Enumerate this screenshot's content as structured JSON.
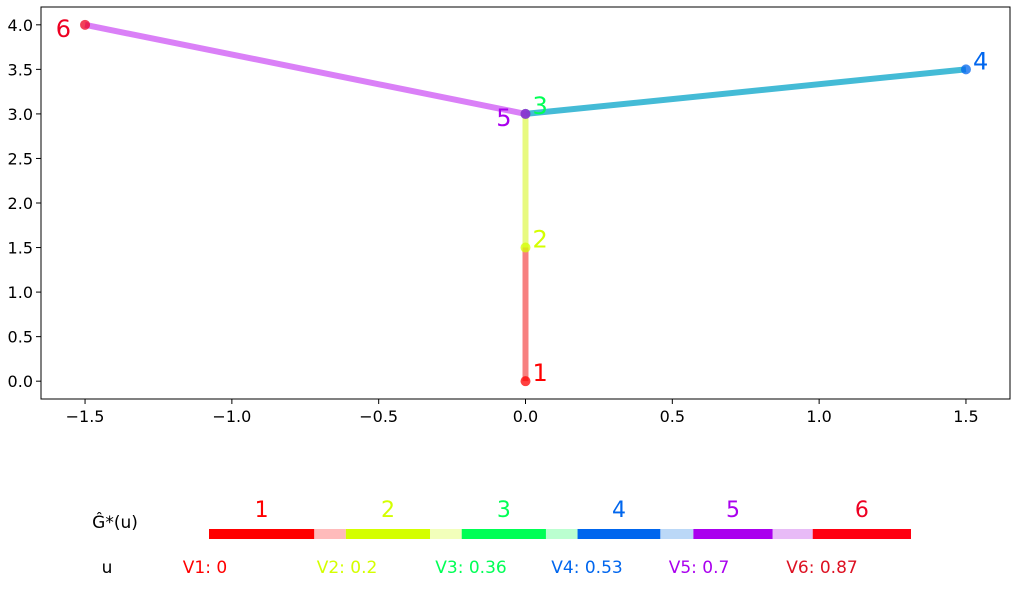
{
  "chart_data": [
    {
      "type": "tree",
      "title": "",
      "xlabel": "",
      "ylabel": "",
      "xlim": [
        -1.65,
        1.65
      ],
      "ylim": [
        -0.2,
        4.2
      ],
      "grid": false,
      "xticks": [
        -1.5,
        -1.0,
        -0.5,
        0.0,
        0.5,
        1.0,
        1.5
      ],
      "xtick_labels": [
        "−1.5",
        "−1.0",
        "−0.5",
        "0.0",
        "0.5",
        "1.0",
        "1.5"
      ],
      "yticks": [
        0.0,
        0.5,
        1.0,
        1.5,
        2.0,
        2.5,
        3.0,
        3.5,
        4.0
      ],
      "ytick_labels": [
        "0.0",
        "0.5",
        "1.0",
        "1.5",
        "2.0",
        "2.5",
        "3.0",
        "3.5",
        "4.0"
      ],
      "nodes": [
        {
          "id": "1",
          "label": "1",
          "x": 0.0,
          "y": 0.0,
          "color": "#ff0000",
          "label_side": "right"
        },
        {
          "id": "2",
          "label": "2",
          "x": 0.0,
          "y": 1.5,
          "color": "#d4ff00",
          "label_side": "right"
        },
        {
          "id": "3",
          "label": "3",
          "x": 0.0,
          "y": 3.0,
          "color": "#00ff55",
          "label_side": "right"
        },
        {
          "id": "4",
          "label": "4",
          "x": 1.5,
          "y": 3.5,
          "color": "#0066ee",
          "label_side": "right"
        },
        {
          "id": "5",
          "label": "5",
          "x": 0.0,
          "y": 3.0,
          "color": "#aa00ee",
          "label_side": "left"
        },
        {
          "id": "6",
          "label": "6",
          "x": -1.5,
          "y": 4.0,
          "color": "#ee0022",
          "label_side": "left"
        }
      ],
      "edges": [
        {
          "from": "1",
          "to": "2",
          "color": "#f78080"
        },
        {
          "from": "2",
          "to": "3",
          "color": "#e8fa80"
        },
        {
          "from": "3",
          "to": "4",
          "color": "#44bbd6"
        },
        {
          "from": "5",
          "to": "6",
          "color": "#da80f7"
        }
      ]
    },
    {
      "type": "bar-strip",
      "row_label_top": "Ĝ*(u)",
      "row_label_bottom": "u",
      "segments": [
        {
          "label": "1",
          "label_color": "#ff0000",
          "start": 0.0,
          "end": 0.15,
          "color": "#ff0000",
          "gap_end": 0.195,
          "gap_color": "#ffbbbb"
        },
        {
          "label": "2",
          "label_color": "#d4ff00",
          "start": 0.195,
          "end": 0.315,
          "color": "#d4ff00",
          "gap_end": 0.36,
          "gap_color": "#f2ffbb"
        },
        {
          "label": "3",
          "label_color": "#00ff55",
          "start": 0.36,
          "end": 0.48,
          "color": "#00ff55",
          "gap_end": 0.525,
          "gap_color": "#bbffd0"
        },
        {
          "label": "4",
          "label_color": "#0066ee",
          "start": 0.525,
          "end": 0.643,
          "color": "#0066ee",
          "gap_end": 0.69,
          "gap_color": "#bbd8f7"
        },
        {
          "label": "5",
          "label_color": "#aa00ee",
          "start": 0.69,
          "end": 0.803,
          "color": "#aa00ee",
          "gap_end": 0.86,
          "gap_color": "#e8bbf7"
        },
        {
          "label": "6",
          "label_color": "#ee0022",
          "start": 0.86,
          "end": 1.0,
          "color": "#ff0011",
          "gap_end": 1.0,
          "gap_color": "#ffffff"
        }
      ],
      "u_values": [
        {
          "text": "V1: 0",
          "color": "#ff0000"
        },
        {
          "text": "V2: 0.2",
          "color": "#d4ff00"
        },
        {
          "text": "V3: 0.36",
          "color": "#00ff55"
        },
        {
          "text": "V4: 0.53",
          "color": "#0066ee"
        },
        {
          "text": "V5: 0.7",
          "color": "#aa00ee"
        },
        {
          "text": "V6: 0.87",
          "color": "#dd1122"
        }
      ]
    }
  ]
}
